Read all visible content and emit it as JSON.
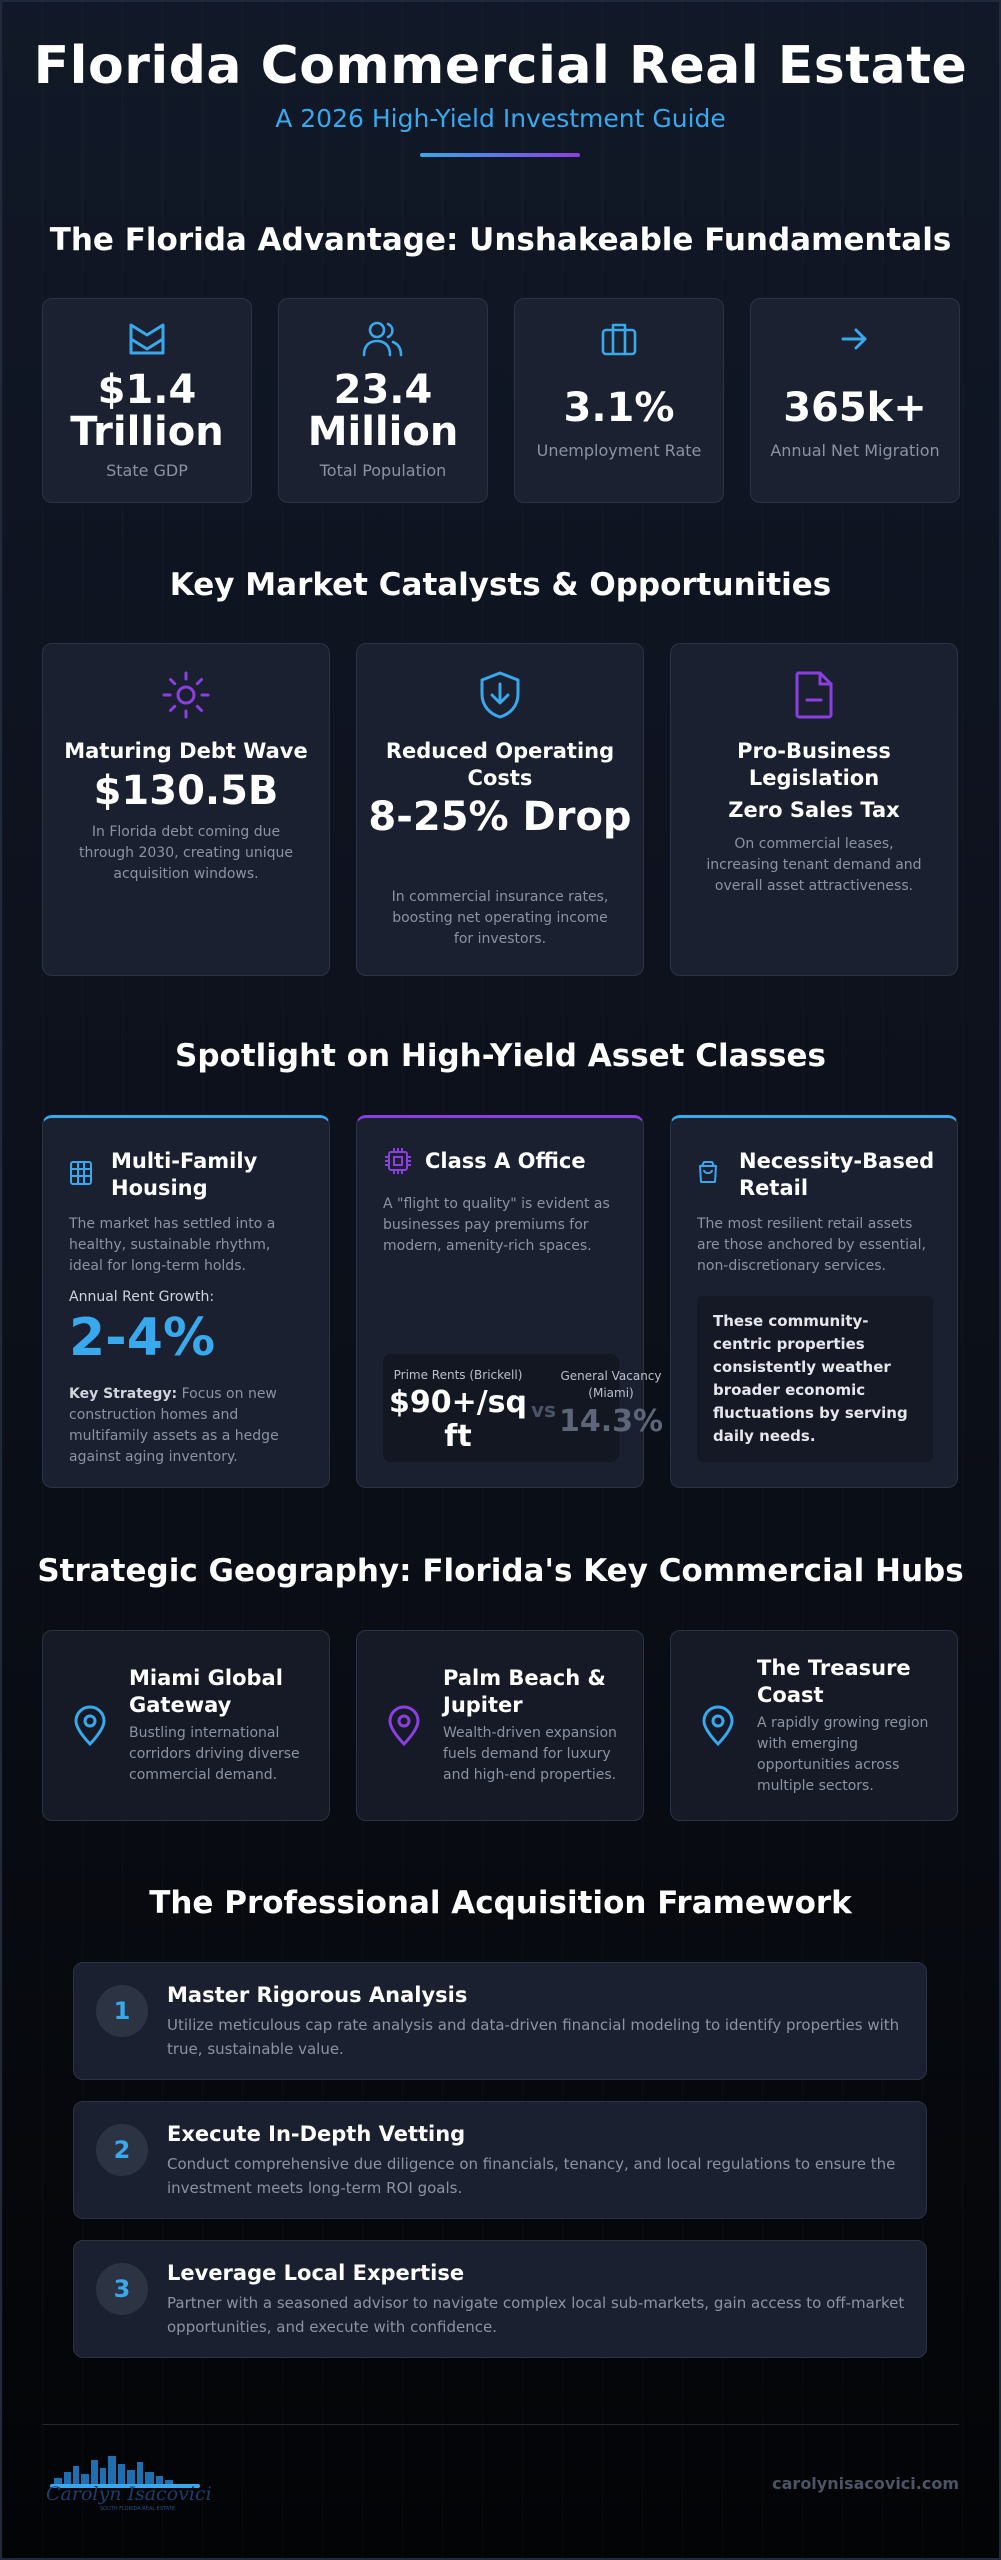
{
  "header": {
    "title": "Florida Commercial Real Estate",
    "subtitle": "A 2026 High-Yield Investment Guide"
  },
  "advantage": {
    "title": "The Florida Advantage: Unshakeable Fundamentals",
    "stats": [
      {
        "icon": "envelope-icon",
        "value": "$1.4 Trillion",
        "label": "State GDP"
      },
      {
        "icon": "users-icon",
        "value": "23.4 Million",
        "label": "Total Population"
      },
      {
        "icon": "briefcase-icon",
        "value": "3.1%",
        "label": "Unemployment Rate"
      },
      {
        "icon": "arrow-right-icon",
        "value": "365k+",
        "label": "Annual Net Migration"
      }
    ]
  },
  "catalysts": {
    "title": "Key Market Catalysts & Opportunities",
    "items": [
      {
        "icon": "sun-icon",
        "heading": "Maturing Debt Wave",
        "value": "$130.5B",
        "description": "In Florida debt coming due through 2030, creating unique acquisition windows."
      },
      {
        "icon": "shield-down-arrow-icon",
        "heading": "Reduced Operating Costs",
        "value": "8-25% Drop",
        "description": "In commercial insurance rates, boosting net operating income for investors."
      },
      {
        "icon": "document-minus-icon",
        "heading": "Pro-Business Legislation",
        "value": "Zero Sales Tax",
        "description": "On commercial leases, increasing tenant demand and overall asset attractiveness."
      }
    ]
  },
  "assets": {
    "title": "Spotlight on High-Yield Asset Classes",
    "multifamily": {
      "icon": "building-grid-icon",
      "title": "Multi-Family Housing",
      "description": "The market has settled into a healthy, sustainable rhythm, ideal for long-term holds.",
      "growth_label": "Annual Rent Growth:",
      "growth_value": "2-4%",
      "strategy_label": "Key Strategy:",
      "strategy_text": " Focus on new construction homes and multifamily assets as a hedge against aging inventory."
    },
    "office": {
      "icon": "cpu-chip-icon",
      "title": "Class A Office",
      "description": "A \"flight to quality\" is evident as businesses pay premiums for modern, amenity-rich spaces.",
      "rent_label": "Prime Rents (Brickell)",
      "rent_value": "$90+/sq ft",
      "vs": "vs",
      "vacancy_label": "General Vacancy (Miami)",
      "vacancy_value": "14.3%"
    },
    "retail": {
      "icon": "shopping-bag-icon",
      "title": "Necessity-Based Retail",
      "description": "The most resilient retail assets are those anchored by essential, non-discretionary services.",
      "quote": "These community-centric properties consistently weather broader economic fluctuations by serving daily needs."
    }
  },
  "geography": {
    "title": "Strategic Geography: Florida's Key Commercial Hubs",
    "hubs": [
      {
        "name": "Miami Global Gateway",
        "description": "Bustling international corridors driving diverse commercial demand."
      },
      {
        "name": "Palm Beach & Jupiter",
        "description": "Wealth-driven expansion fuels demand for luxury and high-end properties."
      },
      {
        "name": "The Treasure Coast",
        "description": "A rapidly growing region with emerging opportunities across multiple sectors."
      }
    ]
  },
  "framework": {
    "title": "The Professional Acquisition Framework",
    "steps": [
      {
        "number": "1",
        "title": "Master Rigorous Analysis",
        "description": "Utilize meticulous cap rate analysis and data-driven financial modeling to identify properties with true, sustainable value."
      },
      {
        "number": "2",
        "title": "Execute In-Depth Vetting",
        "description": "Conduct comprehensive due diligence on financials, tenancy, and local regulations to ensure the investment meets long-term ROI goals."
      },
      {
        "number": "3",
        "title": "Leverage Local Expertise",
        "description": "Partner with a seasoned advisor to navigate complex local sub-markets, gain access to off-market opportunities, and execute with confidence."
      }
    ]
  },
  "footer": {
    "logo_name": "Carolyn Isacovici",
    "logo_tagline": "SOUTH FLORIDA REAL ESTATE",
    "website": "carolynisacovici.com"
  },
  "colors": {
    "accent_blue": "#38a9ec",
    "accent_purple": "#8b3fe0",
    "background": "#0b0f18",
    "card": "#1b2130"
  }
}
